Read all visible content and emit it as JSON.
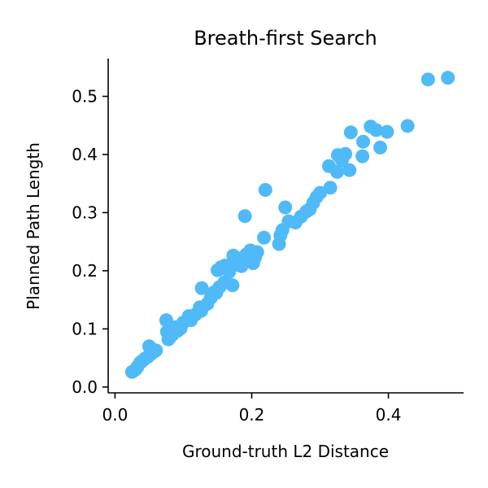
{
  "chart_data": {
    "type": "scatter",
    "title": "Breath-first Search",
    "xlabel": "Ground-truth L2 Distance",
    "ylabel": "Planned Path Length",
    "xlim": [
      -0.01,
      0.51
    ],
    "ylim": [
      -0.01,
      0.565
    ],
    "xticks": [
      0.0,
      0.2,
      0.4
    ],
    "xtick_labels": [
      "0.0",
      "0.2",
      "0.4"
    ],
    "yticks": [
      0.0,
      0.1,
      0.2,
      0.3,
      0.4,
      0.5
    ],
    "ytick_labels": [
      "0.0",
      "0.1",
      "0.2",
      "0.3",
      "0.4",
      "0.5"
    ],
    "grid": false,
    "color": "#4fbaf7",
    "points": [
      [
        0.487,
        0.532
      ],
      [
        0.458,
        0.529
      ],
      [
        0.428,
        0.449
      ],
      [
        0.398,
        0.439
      ],
      [
        0.388,
        0.412
      ],
      [
        0.382,
        0.442
      ],
      [
        0.374,
        0.448
      ],
      [
        0.363,
        0.422
      ],
      [
        0.362,
        0.397
      ],
      [
        0.345,
        0.438
      ],
      [
        0.343,
        0.373
      ],
      [
        0.337,
        0.401
      ],
      [
        0.332,
        0.39
      ],
      [
        0.326,
        0.399
      ],
      [
        0.325,
        0.37
      ],
      [
        0.315,
        0.343
      ],
      [
        0.313,
        0.38
      ],
      [
        0.3,
        0.334
      ],
      [
        0.295,
        0.327
      ],
      [
        0.29,
        0.317
      ],
      [
        0.285,
        0.306
      ],
      [
        0.28,
        0.302
      ],
      [
        0.272,
        0.293
      ],
      [
        0.264,
        0.283
      ],
      [
        0.254,
        0.285
      ],
      [
        0.249,
        0.309
      ],
      [
        0.245,
        0.27
      ],
      [
        0.242,
        0.261
      ],
      [
        0.24,
        0.246
      ],
      [
        0.22,
        0.339
      ],
      [
        0.218,
        0.257
      ],
      [
        0.208,
        0.232
      ],
      [
        0.205,
        0.223
      ],
      [
        0.202,
        0.213
      ],
      [
        0.198,
        0.235
      ],
      [
        0.192,
        0.228
      ],
      [
        0.19,
        0.294
      ],
      [
        0.188,
        0.215
      ],
      [
        0.185,
        0.208
      ],
      [
        0.18,
        0.221
      ],
      [
        0.177,
        0.21
      ],
      [
        0.173,
        0.226
      ],
      [
        0.17,
        0.211
      ],
      [
        0.167,
        0.198
      ],
      [
        0.161,
        0.209
      ],
      [
        0.155,
        0.206
      ],
      [
        0.15,
        0.201
      ],
      [
        0.148,
        0.162
      ],
      [
        0.172,
        0.175
      ],
      [
        0.16,
        0.18
      ],
      [
        0.153,
        0.172
      ],
      [
        0.145,
        0.163
      ],
      [
        0.14,
        0.153
      ],
      [
        0.135,
        0.143
      ],
      [
        0.127,
        0.17
      ],
      [
        0.126,
        0.131
      ],
      [
        0.124,
        0.137
      ],
      [
        0.118,
        0.125
      ],
      [
        0.111,
        0.115
      ],
      [
        0.108,
        0.122
      ],
      [
        0.1,
        0.111
      ],
      [
        0.096,
        0.101
      ],
      [
        0.092,
        0.097
      ],
      [
        0.089,
        0.103
      ],
      [
        0.087,
        0.096
      ],
      [
        0.084,
        0.09
      ],
      [
        0.08,
        0.085
      ],
      [
        0.078,
        0.082
      ],
      [
        0.076,
        0.095
      ],
      [
        0.075,
        0.115
      ],
      [
        0.06,
        0.063
      ],
      [
        0.056,
        0.06
      ],
      [
        0.052,
        0.056
      ],
      [
        0.05,
        0.07
      ],
      [
        0.048,
        0.052
      ],
      [
        0.044,
        0.049
      ],
      [
        0.04,
        0.045
      ],
      [
        0.037,
        0.042
      ],
      [
        0.033,
        0.035
      ],
      [
        0.03,
        0.03
      ],
      [
        0.025,
        0.026
      ]
    ]
  }
}
